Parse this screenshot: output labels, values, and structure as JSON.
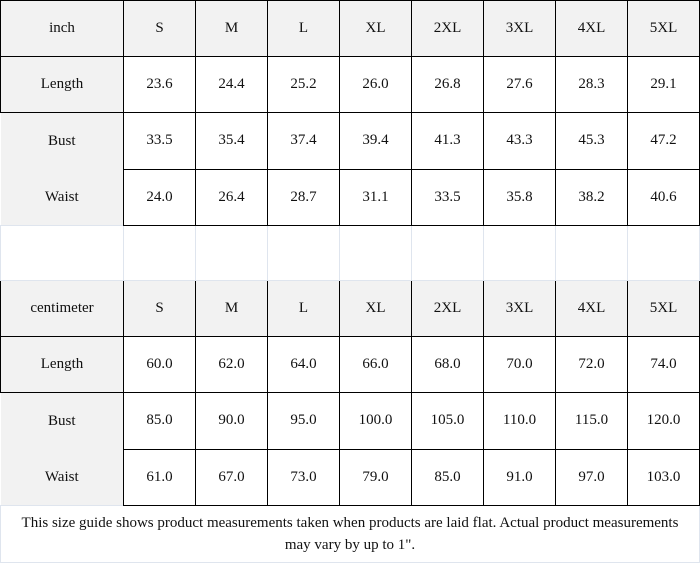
{
  "inch_table": {
    "unit": "inch",
    "sizes": [
      "S",
      "M",
      "L",
      "XL",
      "2XL",
      "3XL",
      "4XL",
      "5XL"
    ],
    "rows": [
      {
        "label": "Length",
        "values": [
          "23.6",
          "24.4",
          "25.2",
          "26.0",
          "26.8",
          "27.6",
          "28.3",
          "29.1"
        ]
      },
      {
        "label": "Bust",
        "values": [
          "33.5",
          "35.4",
          "37.4",
          "39.4",
          "41.3",
          "43.3",
          "45.3",
          "47.2"
        ]
      },
      {
        "label": "Waist",
        "values": [
          "24.0",
          "26.4",
          "28.7",
          "31.1",
          "33.5",
          "35.8",
          "38.2",
          "40.6"
        ]
      }
    ]
  },
  "cm_table": {
    "unit": "centimeter",
    "sizes": [
      "S",
      "M",
      "L",
      "XL",
      "2XL",
      "3XL",
      "4XL",
      "5XL"
    ],
    "rows": [
      {
        "label": "Length",
        "values": [
          "60.0",
          "62.0",
          "64.0",
          "66.0",
          "68.0",
          "70.0",
          "72.0",
          "74.0"
        ]
      },
      {
        "label": "Bust",
        "values": [
          "85.0",
          "90.0",
          "95.0",
          "100.0",
          "105.0",
          "110.0",
          "115.0",
          "120.0"
        ]
      },
      {
        "label": "Waist",
        "values": [
          "61.0",
          "67.0",
          "73.0",
          "79.0",
          "85.0",
          "91.0",
          "97.0",
          "103.0"
        ]
      }
    ]
  },
  "note": "This size guide shows product measurements taken when products are laid flat. Actual product measurements may vary by up to 1\"."
}
